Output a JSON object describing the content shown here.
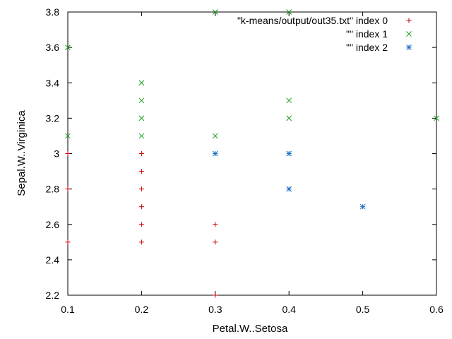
{
  "chart_data": {
    "type": "scatter",
    "title": "",
    "xlabel": "Petal.W..Setosa",
    "ylabel": "Sepal.W..Virginica",
    "xlim": [
      0.1,
      0.6
    ],
    "ylim": [
      2.2,
      3.8
    ],
    "xticks": [
      "0.1",
      "0.2",
      "0.3",
      "0.4",
      "0.5",
      "0.6"
    ],
    "yticks": [
      "2.2",
      "2.4",
      "2.6",
      "2.8",
      "3",
      "3.2",
      "3.4",
      "3.6",
      "3.8"
    ],
    "grid": false,
    "legend_position": "top-right",
    "series": [
      {
        "name": "\"k-means/output/out35.txt\" index 0",
        "marker": "plus",
        "color": "#cc0000",
        "points": [
          [
            0.1,
            3.0
          ],
          [
            0.1,
            2.8
          ],
          [
            0.1,
            2.5
          ],
          [
            0.2,
            3.0
          ],
          [
            0.2,
            2.9
          ],
          [
            0.2,
            2.8
          ],
          [
            0.2,
            2.7
          ],
          [
            0.2,
            2.6
          ],
          [
            0.2,
            2.5
          ],
          [
            0.3,
            2.6
          ],
          [
            0.3,
            2.5
          ],
          [
            0.3,
            2.2
          ]
        ]
      },
      {
        "name": "\"\" index 1",
        "marker": "cross",
        "color": "#1a9e1a",
        "points": [
          [
            0.1,
            3.6
          ],
          [
            0.1,
            3.1
          ],
          [
            0.2,
            3.4
          ],
          [
            0.2,
            3.3
          ],
          [
            0.2,
            3.2
          ],
          [
            0.2,
            3.1
          ],
          [
            0.3,
            3.8
          ],
          [
            0.3,
            3.1
          ],
          [
            0.4,
            3.8
          ],
          [
            0.4,
            3.3
          ],
          [
            0.4,
            3.2
          ],
          [
            0.6,
            3.2
          ]
        ]
      },
      {
        "name": "\"\" index 2",
        "marker": "star",
        "color": "#1a6fc4",
        "points": [
          [
            0.3,
            3.0
          ],
          [
            0.4,
            3.0
          ],
          [
            0.4,
            2.8
          ],
          [
            0.5,
            2.7
          ]
        ]
      }
    ]
  }
}
